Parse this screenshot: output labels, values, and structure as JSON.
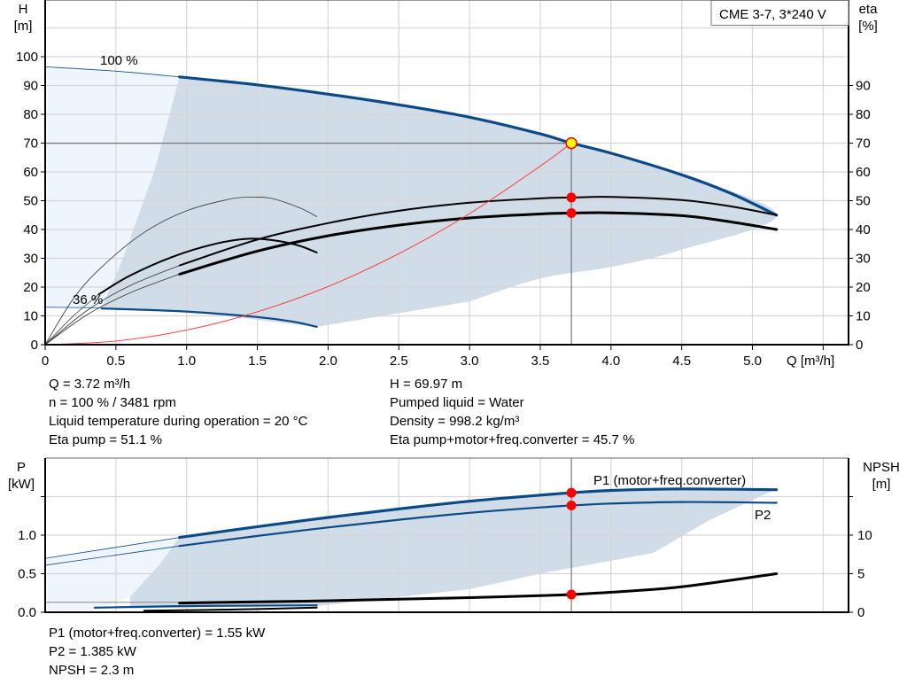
{
  "title_box": "CME 3-7, 3*240 V",
  "colors": {
    "curve_blue": "#0b4a86",
    "area_dark": "#d0dce8",
    "area_light": "#eef5fc",
    "grid": "#d6d6d6",
    "system_curve": "#ff3030",
    "duty_point": "#ff0000",
    "duty_point_fill": "#ffff00"
  },
  "chart_data": [
    {
      "id": "head_eta",
      "type": "line",
      "ylabel": "H",
      "yunit": "[m]",
      "y2label": "eta",
      "y2unit": "[%]",
      "xlabel": "Q [m³/h]",
      "xlim": [
        0,
        5.5
      ],
      "ylim": [
        0,
        110
      ],
      "y2lim": [
        0,
        90
      ],
      "x_ticks": [
        "0",
        "0.5",
        "1.0",
        "1.5",
        "2.0",
        "2.5",
        "3.0",
        "3.5",
        "4.0",
        "4.5",
        "5.0"
      ],
      "y_ticks": [
        "0",
        "10",
        "20",
        "30",
        "40",
        "50",
        "60",
        "70",
        "80",
        "90",
        "100"
      ],
      "y2_ticks": [
        "0",
        "10",
        "20",
        "30",
        "40",
        "50",
        "60",
        "70",
        "80",
        "90"
      ],
      "grid": true,
      "annotations": {
        "max_speed": "100 %",
        "min_speed": "36 %"
      },
      "areas": {
        "extended_range": [
          [
            0,
            96.5
          ],
          [
            0.95,
            93
          ],
          [
            0.77,
            60
          ],
          [
            0.55,
            30
          ],
          [
            0.4,
            13
          ],
          [
            0,
            13
          ]
        ],
        "operating_range": [
          [
            0.95,
            93
          ],
          [
            2,
            87
          ],
          [
            3,
            79
          ],
          [
            3.72,
            70
          ],
          [
            4,
            66.5
          ],
          [
            4.5,
            59
          ],
          [
            5.17,
            45
          ],
          [
            4.5,
            33
          ],
          [
            4,
            27
          ],
          [
            3.5,
            23
          ],
          [
            3,
            15
          ],
          [
            1.92,
            6.2
          ],
          [
            1,
            11.5
          ],
          [
            0.4,
            12.8
          ],
          [
            0.55,
            30
          ],
          [
            0.77,
            60
          ]
        ]
      },
      "series": [
        {
          "key": "qh_100_ext",
          "style": "thin-blue",
          "points": [
            [
              0,
              96.5
            ],
            [
              0.5,
              95
            ],
            [
              0.95,
              93
            ]
          ]
        },
        {
          "key": "qh_100",
          "style": "thick-blue",
          "points": [
            [
              0.95,
              93
            ],
            [
              1.5,
              90.2
            ],
            [
              2,
              87
            ],
            [
              2.5,
              83.3
            ],
            [
              3,
              79
            ],
            [
              3.5,
              73.2
            ],
            [
              3.72,
              70
            ],
            [
              4,
              66.5
            ],
            [
              4.5,
              59
            ],
            [
              4.85,
              52.5
            ],
            [
              5.17,
              45
            ]
          ]
        },
        {
          "key": "qh_36_ext",
          "style": "thin-blue",
          "points": [
            [
              0,
              13
            ],
            [
              0.4,
              12.8
            ]
          ]
        },
        {
          "key": "qh_36",
          "style": "mid-blue",
          "points": [
            [
              0.4,
              12.6
            ],
            [
              1,
              11.5
            ],
            [
              1.5,
              9.6
            ],
            [
              1.75,
              8
            ],
            [
              1.92,
              6.2
            ]
          ]
        },
        {
          "key": "eta_pump_ext",
          "style": "thin-black",
          "points": [
            [
              0,
              0
            ],
            [
              0.3,
              12
            ],
            [
              0.6,
              20.5
            ],
            [
              0.95,
              27.5
            ]
          ]
        },
        {
          "key": "eta_pump",
          "style": "mid-black",
          "points": [
            [
              0.95,
              27.5
            ],
            [
              1.5,
              36.5
            ],
            [
              2,
              42.2
            ],
            [
              2.5,
              46.5
            ],
            [
              3,
              49.3
            ],
            [
              3.5,
              50.8
            ],
            [
              3.72,
              51.1
            ],
            [
              4,
              51.3
            ],
            [
              4.5,
              50.2
            ],
            [
              4.85,
              48
            ],
            [
              5.17,
              45
            ]
          ]
        },
        {
          "key": "eta_total_ext",
          "style": "thin-black",
          "points": [
            [
              0,
              0
            ],
            [
              0.3,
              10.5
            ],
            [
              0.6,
              18
            ],
            [
              0.95,
              24.5
            ]
          ]
        },
        {
          "key": "eta_total",
          "style": "thick-black",
          "points": [
            [
              0.95,
              24.5
            ],
            [
              1.5,
              32.5
            ],
            [
              2,
              37.8
            ],
            [
              2.5,
              41.5
            ],
            [
              3,
              44
            ],
            [
              3.5,
              45.4
            ],
            [
              3.72,
              45.7
            ],
            [
              4,
              45.8
            ],
            [
              4.5,
              44.8
            ],
            [
              4.85,
              42.6
            ],
            [
              5.17,
              40
            ]
          ]
        },
        {
          "key": "eta_pump_36",
          "style": "thin-black",
          "points": [
            [
              0,
              0
            ],
            [
              0.2,
              16
            ],
            [
              0.4,
              27
            ],
            [
              0.7,
              39
            ],
            [
              1,
              46.5
            ],
            [
              1.3,
              50.5
            ],
            [
              1.45,
              51.2
            ],
            [
              1.6,
              50.8
            ],
            [
              1.8,
              47.5
            ],
            [
              1.92,
              44.5
            ]
          ]
        },
        {
          "key": "eta_total_36_ext",
          "style": "thin-black",
          "points": [
            [
              0,
              0
            ],
            [
              0.2,
              10
            ],
            [
              0.38,
              17.5
            ]
          ]
        },
        {
          "key": "eta_total_36",
          "style": "mid-black",
          "points": [
            [
              0.38,
              17.5
            ],
            [
              0.6,
              24
            ],
            [
              0.9,
              30.5
            ],
            [
              1.2,
              35
            ],
            [
              1.45,
              36.8
            ],
            [
              1.65,
              36
            ],
            [
              1.8,
              34.3
            ],
            [
              1.92,
              32
            ]
          ]
        },
        {
          "key": "system_curve",
          "style": "red",
          "points": [
            [
              0,
              0
            ],
            [
              0.5,
              1.26
            ],
            [
              1,
              5.06
            ],
            [
              1.5,
              11.4
            ],
            [
              2,
              20.2
            ],
            [
              2.5,
              31.6
            ],
            [
              3,
              45.5
            ],
            [
              3.5,
              62
            ],
            [
              3.72,
              70
            ]
          ]
        }
      ],
      "duty_point": {
        "Q": 3.72,
        "H": 69.97,
        "eta_pump": 51.1,
        "eta_total": 45.7
      }
    },
    {
      "id": "power_npsh",
      "type": "line",
      "ylabel": "P",
      "yunit": "[kW]",
      "y2label": "NPSH",
      "y2unit": "[m]",
      "xlim": [
        0,
        5.5
      ],
      "ylim": [
        0,
        2.0
      ],
      "y2lim": [
        0,
        20
      ],
      "y_ticks": [
        "0.0",
        "0.5",
        "1.0"
      ],
      "y2_ticks": [
        "0",
        "5",
        "10"
      ],
      "grid": true,
      "legend": {
        "p1": "P1 (motor+freq.converter)",
        "p2": "P2"
      },
      "areas": {
        "extended_range": [
          [
            0,
            0.7
          ],
          [
            0.95,
            0.97
          ],
          [
            0.8,
            0.6
          ],
          [
            0.6,
            0.2
          ],
          [
            0.35,
            0.03
          ],
          [
            0,
            0.02
          ]
        ],
        "operating_range": [
          [
            0.95,
            0.97
          ],
          [
            2,
            1.22
          ],
          [
            3,
            1.42
          ],
          [
            3.72,
            1.55
          ],
          [
            4.5,
            1.6
          ],
          [
            5.17,
            1.6
          ],
          [
            4.7,
            1.2
          ],
          [
            4.3,
            0.77
          ],
          [
            3.5,
            0.5
          ],
          [
            3,
            0.3
          ],
          [
            1.92,
            0.08
          ],
          [
            0.6,
            0.05
          ],
          [
            0.6,
            0.2
          ],
          [
            0.8,
            0.6
          ]
        ]
      },
      "series": [
        {
          "key": "p1_ext",
          "style": "thin-blue",
          "points": [
            [
              0,
              0.7
            ],
            [
              0.95,
              0.97
            ]
          ]
        },
        {
          "key": "p1",
          "style": "thick-blue",
          "points": [
            [
              0.95,
              0.97
            ],
            [
              1.5,
              1.11
            ],
            [
              2,
              1.23
            ],
            [
              2.5,
              1.34
            ],
            [
              3,
              1.44
            ],
            [
              3.5,
              1.52
            ],
            [
              3.72,
              1.55
            ],
            [
              4,
              1.58
            ],
            [
              4.5,
              1.6
            ],
            [
              5.17,
              1.59
            ]
          ]
        },
        {
          "key": "p2_ext",
          "style": "thin-blue",
          "points": [
            [
              0,
              0.61
            ],
            [
              0.95,
              0.86
            ]
          ]
        },
        {
          "key": "p2",
          "style": "mid-blue",
          "points": [
            [
              0.95,
              0.86
            ],
            [
              1.5,
              0.99
            ],
            [
              2,
              1.1
            ],
            [
              2.5,
              1.2
            ],
            [
              3,
              1.29
            ],
            [
              3.5,
              1.36
            ],
            [
              3.72,
              1.385
            ],
            [
              4,
              1.41
            ],
            [
              4.5,
              1.43
            ],
            [
              5.17,
              1.42
            ]
          ]
        },
        {
          "key": "p1_36",
          "style": "mid-blue",
          "points": [
            [
              0.35,
              0.06
            ],
            [
              1,
              0.08
            ],
            [
              1.92,
              0.09
            ]
          ]
        },
        {
          "key": "npsh_36",
          "style": "mid-black",
          "points": [
            [
              0.7,
              0.2
            ],
            [
              1.3,
              0.35
            ],
            [
              1.92,
              0.6
            ]
          ]
        },
        {
          "key": "npsh",
          "style": "thick-black",
          "points": [
            [
              0.95,
              1.2
            ],
            [
              1.5,
              1.35
            ],
            [
              2,
              1.5
            ],
            [
              2.5,
              1.7
            ],
            [
              3,
              1.9
            ],
            [
              3.5,
              2.15
            ],
            [
              3.72,
              2.3
            ],
            [
              4,
              2.6
            ],
            [
              4.5,
              3.3
            ],
            [
              5.17,
              5
            ]
          ]
        }
      ],
      "duty_point": {
        "P1": 1.55,
        "P2": 1.385,
        "NPSH": 2.3
      }
    }
  ],
  "info_top": {
    "left": [
      "Q = 3.72 m³/h",
      "n = 100 % / 3481 rpm",
      "Liquid temperature during operation = 20 °C",
      "Eta pump = 51.1 %"
    ],
    "right": [
      "H = 69.97 m",
      "Pumped liquid = Water",
      "Density = 998.2 kg/m³",
      "Eta pump+motor+freq.converter = 45.7 %"
    ]
  },
  "info_bottom": [
    "P1 (motor+freq.converter) = 1.55 kW",
    "P2 = 1.385 kW",
    "NPSH = 2.3 m"
  ]
}
